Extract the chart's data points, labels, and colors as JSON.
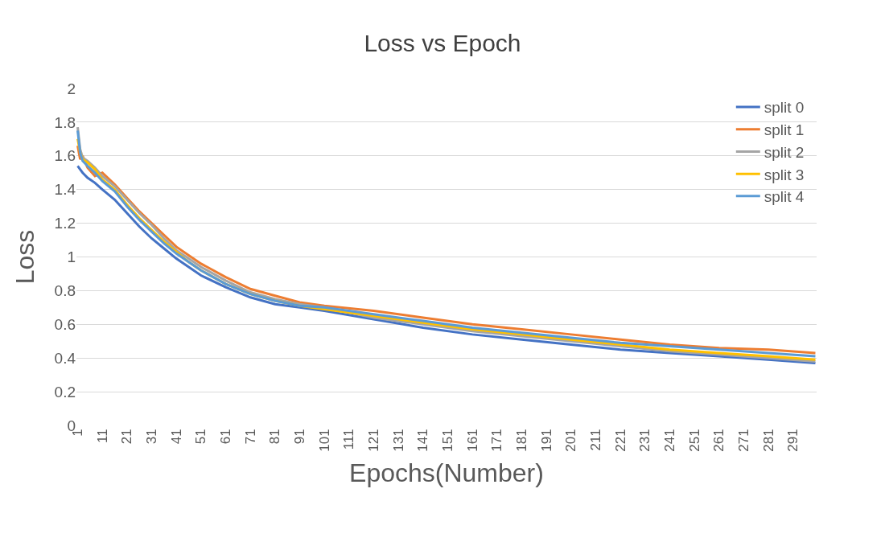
{
  "chart_data": {
    "type": "line",
    "title": "Loss vs Epoch",
    "xlabel": "Epochs(Number)",
    "ylabel": "Loss",
    "x": [
      1,
      2,
      3,
      5,
      8,
      11,
      16,
      21,
      26,
      31,
      36,
      41,
      46,
      51,
      61,
      71,
      81,
      91,
      101,
      121,
      141,
      161,
      181,
      201,
      221,
      241,
      261,
      281,
      300
    ],
    "series": [
      {
        "name": "split 0",
        "color": "#4472c4",
        "values": [
          1.54,
          1.52,
          1.5,
          1.47,
          1.44,
          1.4,
          1.34,
          1.26,
          1.18,
          1.11,
          1.05,
          0.99,
          0.94,
          0.89,
          0.82,
          0.76,
          0.72,
          0.7,
          0.68,
          0.63,
          0.58,
          0.54,
          0.51,
          0.48,
          0.45,
          0.43,
          0.41,
          0.39,
          0.37
        ]
      },
      {
        "name": "split 1",
        "color": "#ed7d31",
        "values": [
          1.66,
          1.58,
          1.6,
          1.53,
          1.48,
          1.5,
          1.43,
          1.35,
          1.27,
          1.2,
          1.13,
          1.06,
          1.01,
          0.96,
          0.88,
          0.81,
          0.77,
          0.73,
          0.71,
          0.68,
          0.64,
          0.6,
          0.57,
          0.54,
          0.51,
          0.48,
          0.46,
          0.45,
          0.43
        ]
      },
      {
        "name": "split 2",
        "color": "#a5a5a5",
        "values": [
          1.77,
          1.64,
          1.59,
          1.57,
          1.53,
          1.48,
          1.42,
          1.34,
          1.26,
          1.19,
          1.11,
          1.04,
          0.99,
          0.94,
          0.86,
          0.79,
          0.75,
          0.72,
          0.7,
          0.64,
          0.6,
          0.56,
          0.53,
          0.5,
          0.47,
          0.44,
          0.42,
          0.4,
          0.38
        ]
      },
      {
        "name": "split 3",
        "color": "#ffc000",
        "values": [
          1.7,
          1.62,
          1.58,
          1.56,
          1.52,
          1.46,
          1.4,
          1.31,
          1.23,
          1.16,
          1.09,
          1.03,
          0.97,
          0.92,
          0.84,
          0.78,
          0.74,
          0.71,
          0.69,
          0.65,
          0.61,
          0.57,
          0.54,
          0.51,
          0.48,
          0.45,
          0.43,
          0.41,
          0.39
        ]
      },
      {
        "name": "split 4",
        "color": "#5b9bd5",
        "values": [
          1.75,
          1.62,
          1.57,
          1.54,
          1.5,
          1.45,
          1.39,
          1.3,
          1.22,
          1.15,
          1.08,
          1.02,
          0.97,
          0.92,
          0.84,
          0.78,
          0.74,
          0.71,
          0.7,
          0.66,
          0.62,
          0.58,
          0.55,
          0.52,
          0.49,
          0.47,
          0.45,
          0.43,
          0.41
        ]
      }
    ],
    "xlim": [
      0.5,
      300.5
    ],
    "xticks": [
      1,
      11,
      21,
      31,
      41,
      51,
      61,
      71,
      81,
      91,
      101,
      111,
      121,
      131,
      141,
      151,
      161,
      171,
      181,
      191,
      201,
      211,
      221,
      231,
      241,
      251,
      261,
      271,
      281,
      291
    ],
    "ylim": [
      0,
      2
    ],
    "yticks": [
      0,
      0.2,
      0.4,
      0.6,
      0.8,
      1,
      1.2,
      1.4,
      1.6,
      1.8,
      2
    ],
    "grid": "y",
    "legend": "top right",
    "marker": "none",
    "line_style": "solid"
  }
}
